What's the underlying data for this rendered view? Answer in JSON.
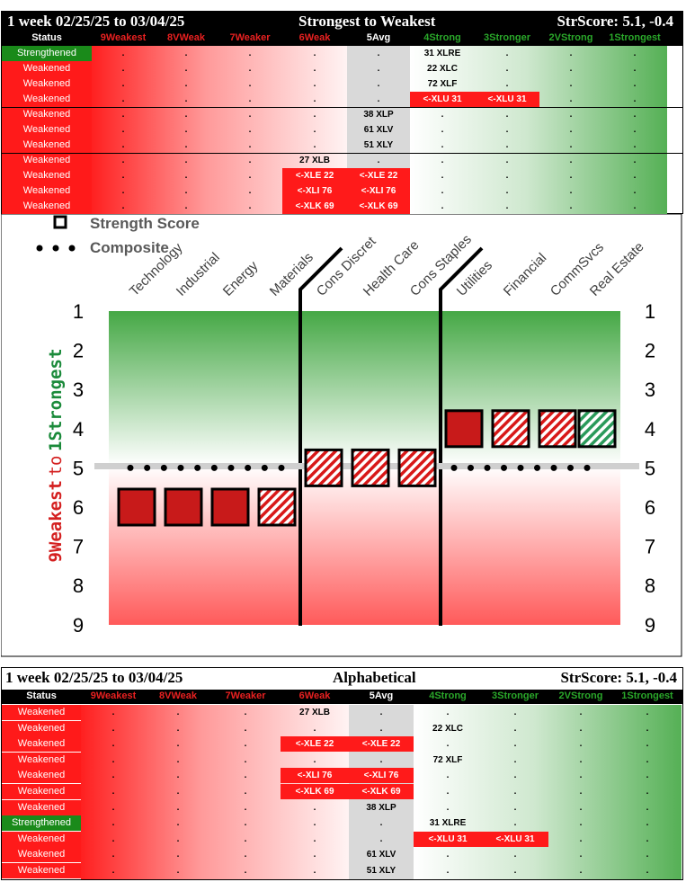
{
  "colors": {
    "red": "#c81a1a",
    "green": "#1a8a3a",
    "strengthened": "#1a8a1a",
    "weakened": "#ff1a1a"
  },
  "top_table": {
    "period": "1 week 02/25/25 to 03/04/25",
    "title": "Strongest to Weakest",
    "score": "StrScore: 5.1, -0.4",
    "columns": [
      "Status",
      "9Weakest",
      "8VWeak",
      "7Weaker",
      "6Weak",
      "5Avg",
      "4Strong",
      "3Stronger",
      "2VStrong",
      "1Strongest"
    ],
    "rows": [
      {
        "status": "Strengthened",
        "cells": [
          ".",
          ".",
          ".",
          ".",
          ".",
          "31 XLRE",
          ".",
          ".",
          "."
        ],
        "red": []
      },
      {
        "status": "Weakened",
        "cells": [
          ".",
          ".",
          ".",
          ".",
          ".",
          "22 XLC",
          ".",
          ".",
          "."
        ],
        "red": []
      },
      {
        "status": "Weakened",
        "cells": [
          ".",
          ".",
          ".",
          ".",
          ".",
          "72 XLF",
          ".",
          ".",
          "."
        ],
        "red": []
      },
      {
        "status": "Weakened",
        "cells": [
          ".",
          ".",
          ".",
          ".",
          ".",
          "<-XLU 31",
          "<-XLU 31",
          ".",
          "."
        ],
        "red": [
          5,
          6
        ]
      },
      {
        "status": "Weakened",
        "cells": [
          ".",
          ".",
          ".",
          ".",
          "38 XLP",
          ".",
          ".",
          ".",
          "."
        ],
        "red": []
      },
      {
        "status": "Weakened",
        "cells": [
          ".",
          ".",
          ".",
          ".",
          "61 XLV",
          ".",
          ".",
          ".",
          "."
        ],
        "red": []
      },
      {
        "status": "Weakened",
        "cells": [
          ".",
          ".",
          ".",
          ".",
          "51 XLY",
          ".",
          ".",
          ".",
          "."
        ],
        "red": []
      },
      {
        "status": "Weakened",
        "cells": [
          ".",
          ".",
          ".",
          "27 XLB",
          ".",
          ".",
          ".",
          ".",
          "."
        ],
        "red": []
      },
      {
        "status": "Weakened",
        "cells": [
          ".",
          ".",
          ".",
          "<-XLE 22",
          "<-XLE 22",
          ".",
          ".",
          ".",
          "."
        ],
        "red": [
          3,
          4
        ]
      },
      {
        "status": "Weakened",
        "cells": [
          ".",
          ".",
          ".",
          "<-XLI 76",
          "<-XLI 76",
          ".",
          ".",
          ".",
          "."
        ],
        "red": [
          3,
          4
        ]
      },
      {
        "status": "Weakened",
        "cells": [
          ".",
          ".",
          ".",
          "<-XLK 69",
          "<-XLK 69",
          ".",
          ".",
          ".",
          "."
        ],
        "red": [
          3,
          4
        ]
      }
    ]
  },
  "bottom_table": {
    "period": "1 week 02/25/25 to 03/04/25",
    "title": "Alphabetical",
    "score": "StrScore: 5.1, -0.4",
    "columns": [
      "Status",
      "9Weakest",
      "8VWeak",
      "7Weaker",
      "6Weak",
      "5Avg",
      "4Strong",
      "3Stronger",
      "2VStrong",
      "1Strongest"
    ],
    "rows": [
      {
        "status": "Weakened",
        "cells": [
          ".",
          ".",
          ".",
          "27 XLB",
          ".",
          ".",
          ".",
          ".",
          "."
        ],
        "red": []
      },
      {
        "status": "Weakened",
        "cells": [
          ".",
          ".",
          ".",
          ".",
          ".",
          "22 XLC",
          ".",
          ".",
          "."
        ],
        "red": []
      },
      {
        "status": "Weakened",
        "cells": [
          ".",
          ".",
          ".",
          "<-XLE 22",
          "<-XLE 22",
          ".",
          ".",
          ".",
          "."
        ],
        "red": [
          3,
          4
        ]
      },
      {
        "status": "Weakened",
        "cells": [
          ".",
          ".",
          ".",
          ".",
          ".",
          "72 XLF",
          ".",
          ".",
          "."
        ],
        "red": []
      },
      {
        "status": "Weakened",
        "cells": [
          ".",
          ".",
          ".",
          "<-XLI 76",
          "<-XLI 76",
          ".",
          ".",
          ".",
          "."
        ],
        "red": [
          3,
          4
        ]
      },
      {
        "status": "Weakened",
        "cells": [
          ".",
          ".",
          ".",
          "<-XLK 69",
          "<-XLK 69",
          ".",
          ".",
          ".",
          "."
        ],
        "red": [
          3,
          4
        ]
      },
      {
        "status": "Weakened",
        "cells": [
          ".",
          ".",
          ".",
          ".",
          "38 XLP",
          ".",
          ".",
          ".",
          "."
        ],
        "red": []
      },
      {
        "status": "Strengthened",
        "cells": [
          ".",
          ".",
          ".",
          ".",
          ".",
          "31 XLRE",
          ".",
          ".",
          "."
        ],
        "red": []
      },
      {
        "status": "Weakened",
        "cells": [
          ".",
          ".",
          ".",
          ".",
          ".",
          "<-XLU 31",
          "<-XLU 31",
          ".",
          "."
        ],
        "red": [
          5,
          6
        ]
      },
      {
        "status": "Weakened",
        "cells": [
          ".",
          ".",
          ".",
          ".",
          "61 XLV",
          ".",
          ".",
          ".",
          "."
        ],
        "red": []
      },
      {
        "status": "Weakened",
        "cells": [
          ".",
          ".",
          ".",
          ".",
          "51 XLY",
          ".",
          ".",
          ".",
          "."
        ],
        "red": []
      }
    ]
  },
  "chart_data": {
    "type": "scatter",
    "legend": {
      "placement": "top-left",
      "entries": [
        "Strength Score",
        "Composite"
      ]
    },
    "y_axis_label_weak": "9Weakest",
    "y_axis_label_to": "to",
    "y_axis_label_strong": "1Strongest",
    "categories": [
      "Technology",
      "Industrial",
      "Energy",
      "Materials",
      "Cons Discret",
      "Health Care",
      "Cons Staples",
      "Utilities",
      "Financial",
      "CommSvcs",
      "Real Estate"
    ],
    "ylim": [
      9,
      1
    ],
    "yticks": [
      "1",
      "2",
      "3",
      "4",
      "5",
      "6",
      "7",
      "8",
      "9"
    ],
    "composite_line": 5,
    "composite": [
      5,
      5,
      5,
      5,
      5,
      5,
      5,
      5,
      5,
      5,
      5
    ],
    "strength_score": [
      6.0,
      6.0,
      6.0,
      6.0,
      5.0,
      5.0,
      5.0,
      4.0,
      4.0,
      4.0,
      4.0
    ],
    "marker_style": [
      "solid-red",
      "solid-red",
      "solid-red",
      "hatched-red",
      "hatched-red",
      "hatched-red",
      "hatched-red",
      "solid-red",
      "hatched-red",
      "hatched-red",
      "hatched-green"
    ],
    "dividers_after_index": [
      3,
      6
    ]
  }
}
